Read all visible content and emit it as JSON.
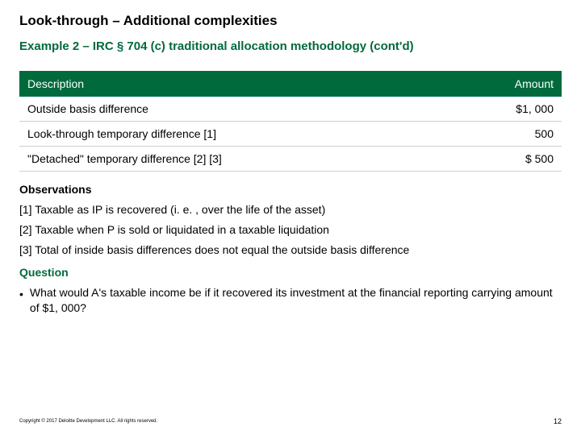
{
  "title": "Look-through – Additional complexities",
  "subtitle": "Example 2 – IRC § 704 (c) traditional allocation methodology (cont'd)",
  "table": {
    "columns": [
      "Description",
      "Amount"
    ],
    "rows": [
      {
        "desc": "Outside basis difference",
        "amount": "$1, 000"
      },
      {
        "desc": "Look-through temporary difference [1]",
        "amount": "500"
      },
      {
        "desc": "\"Detached\" temporary difference [2] [3]",
        "amount": "$  500"
      }
    ],
    "header_bg": "#006a3d",
    "header_fg": "#ffffff",
    "row_border": "#cfcfcf",
    "body_fontsize": 14
  },
  "observations": {
    "heading": "Observations",
    "items": [
      "[1] Taxable as IP is recovered (i. e. , over the life of the asset)",
      "[2] Taxable when P is sold or liquidated in a taxable liquidation",
      "[3] Total of inside basis differences does not equal the outside basis difference"
    ]
  },
  "question": {
    "heading": "Question",
    "bullet": "What would A's taxable income be if it recovered its investment at the financial reporting carrying amount of $1, 000?"
  },
  "footer": {
    "copyright": "Copyright © 2017 Deloitte Development LLC. All rights reserved.",
    "page": "12"
  },
  "colors": {
    "brand_green": "#006a3d",
    "text": "#000000",
    "background": "#ffffff"
  }
}
